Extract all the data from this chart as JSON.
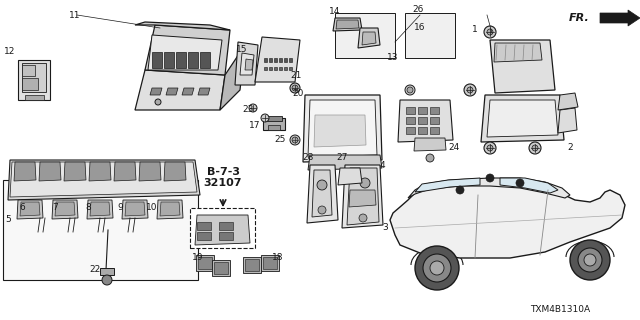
{
  "bg_color": "#ffffff",
  "diagram_image_code": "TXM4B1310A",
  "figsize": [
    6.4,
    3.2
  ],
  "dpi": 100,
  "line_color": "#1a1a1a",
  "label_fontsize": 6.5,
  "line_width": 0.7,
  "fr_text": "FR.",
  "ref_text1": "B-7-3",
  "ref_text2": "32107"
}
